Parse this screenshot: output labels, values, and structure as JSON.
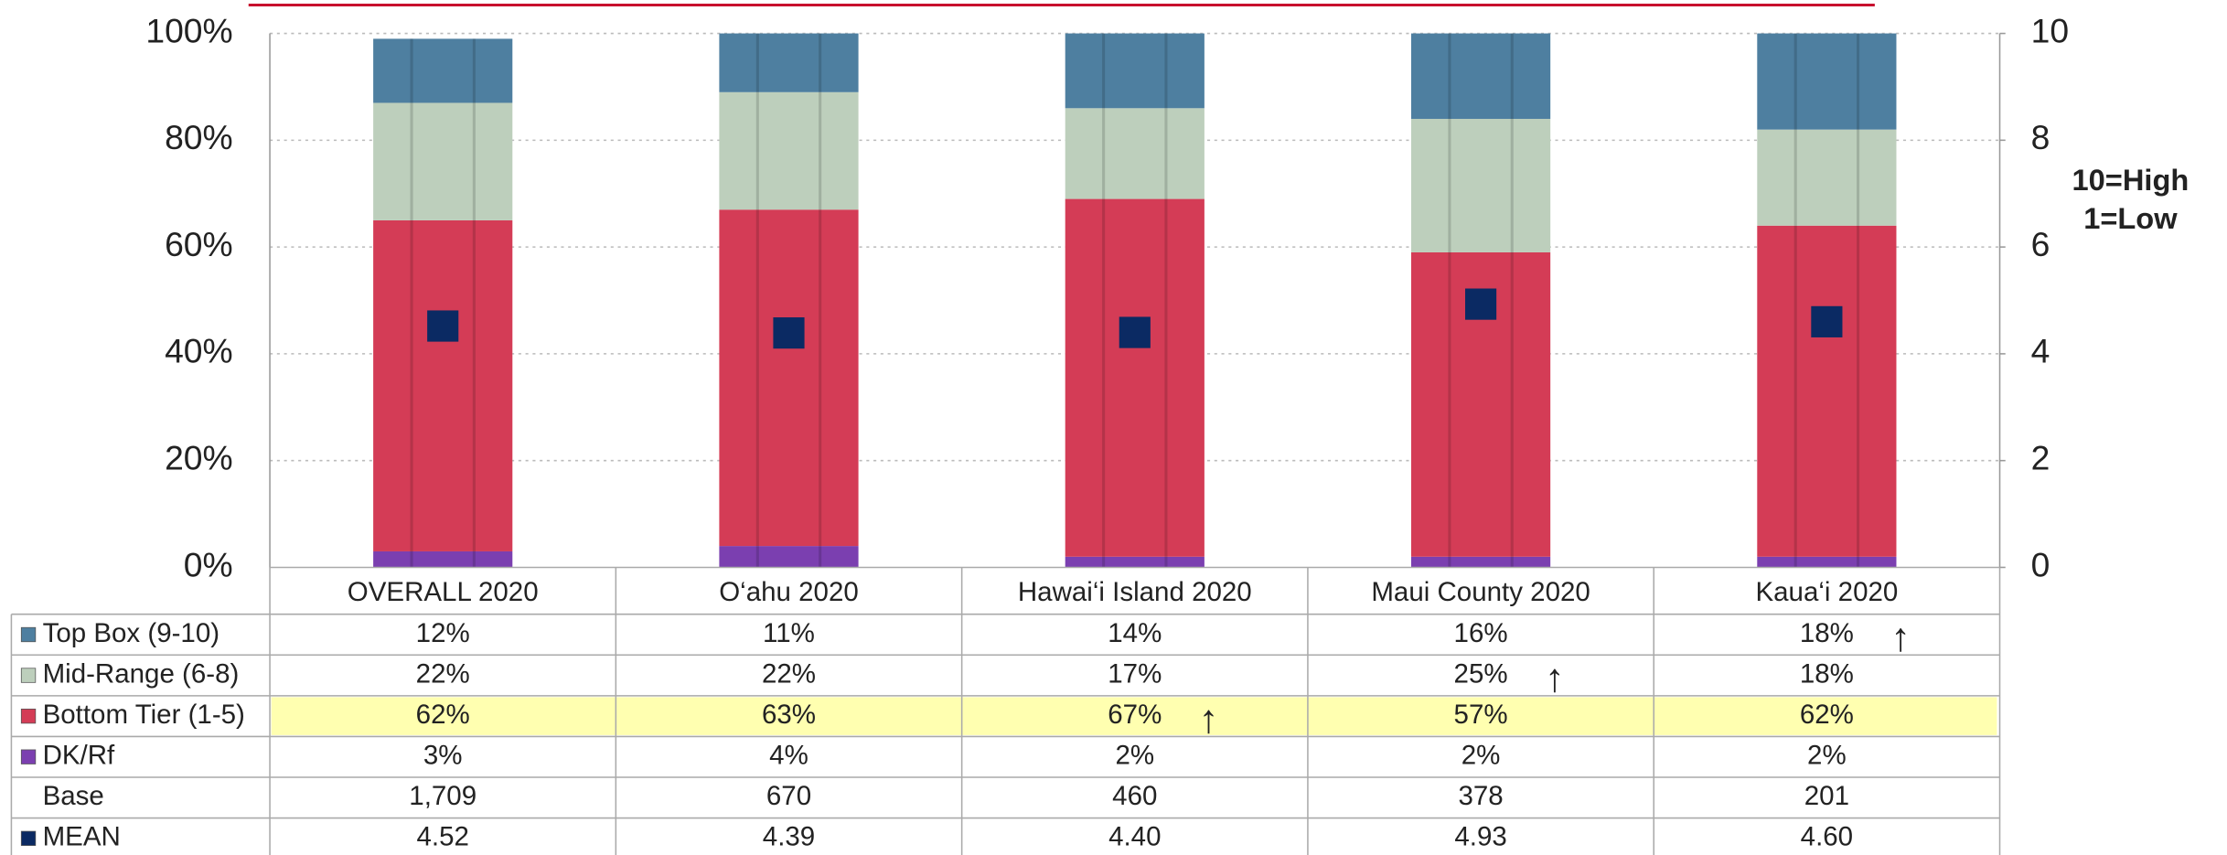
{
  "chart_data": {
    "type": "bar",
    "stacked": true,
    "categories": [
      "OVERALL 2020",
      "O‘ahu 2020",
      "Hawai‘i Island 2020",
      "Maui County 2020",
      "Kaua‘i 2020"
    ],
    "series": [
      {
        "name": "Top Box (9-10)",
        "color": "#4e7fa0",
        "values": [
          12,
          11,
          14,
          16,
          18
        ],
        "value_labels": [
          "12%",
          "11%",
          "14%",
          "16%",
          "18%"
        ],
        "flags": [
          null,
          null,
          null,
          null,
          "↑"
        ]
      },
      {
        "name": "Mid-Range (6-8)",
        "color": "#bdcfbc",
        "values": [
          22,
          22,
          17,
          25,
          18
        ],
        "value_labels": [
          "22%",
          "22%",
          "17%",
          "25%",
          "18%"
        ],
        "flags": [
          null,
          null,
          null,
          "↑",
          null
        ]
      },
      {
        "name": "Bottom Tier (1-5)",
        "color": "#d43c56",
        "values": [
          62,
          63,
          67,
          57,
          62
        ],
        "value_labels": [
          "62%",
          "63%",
          "67%",
          "57%",
          "62%"
        ],
        "flags": [
          null,
          null,
          "↑",
          null,
          null
        ],
        "highlight": "#ffffb0"
      },
      {
        "name": "DK/Rf",
        "color": "#7b3fb0",
        "values": [
          3,
          4,
          2,
          2,
          2
        ],
        "value_labels": [
          "3%",
          "4%",
          "2%",
          "2%",
          "2%"
        ]
      },
      {
        "name": "MEAN",
        "color": "#0b2a63",
        "type": "marker",
        "axis": "y2",
        "values": [
          4.52,
          4.39,
          4.4,
          4.93,
          4.6
        ],
        "value_labels": [
          "4.52",
          "4.39",
          "4.40",
          "4.93",
          "4.60"
        ]
      }
    ],
    "base_row": {
      "name": "Base",
      "values": [
        1709,
        670,
        460,
        378,
        201
      ],
      "value_labels": [
        "1,709",
        "670",
        "460",
        "378",
        "201"
      ]
    },
    "ylim": [
      0,
      100
    ],
    "yticks": [
      {
        "value": 0,
        "label": "0%"
      },
      {
        "value": 20,
        "label": "20%"
      },
      {
        "value": 40,
        "label": "40%"
      },
      {
        "value": 60,
        "label": "60%"
      },
      {
        "value": 80,
        "label": "80%"
      },
      {
        "value": 100,
        "label": "100%"
      }
    ],
    "y2lim": [
      0,
      10
    ],
    "y2ticks": [
      0,
      2,
      4,
      6,
      8,
      10
    ],
    "y2_axis_label": [
      "10=High",
      "1=Low"
    ],
    "grid": true
  }
}
